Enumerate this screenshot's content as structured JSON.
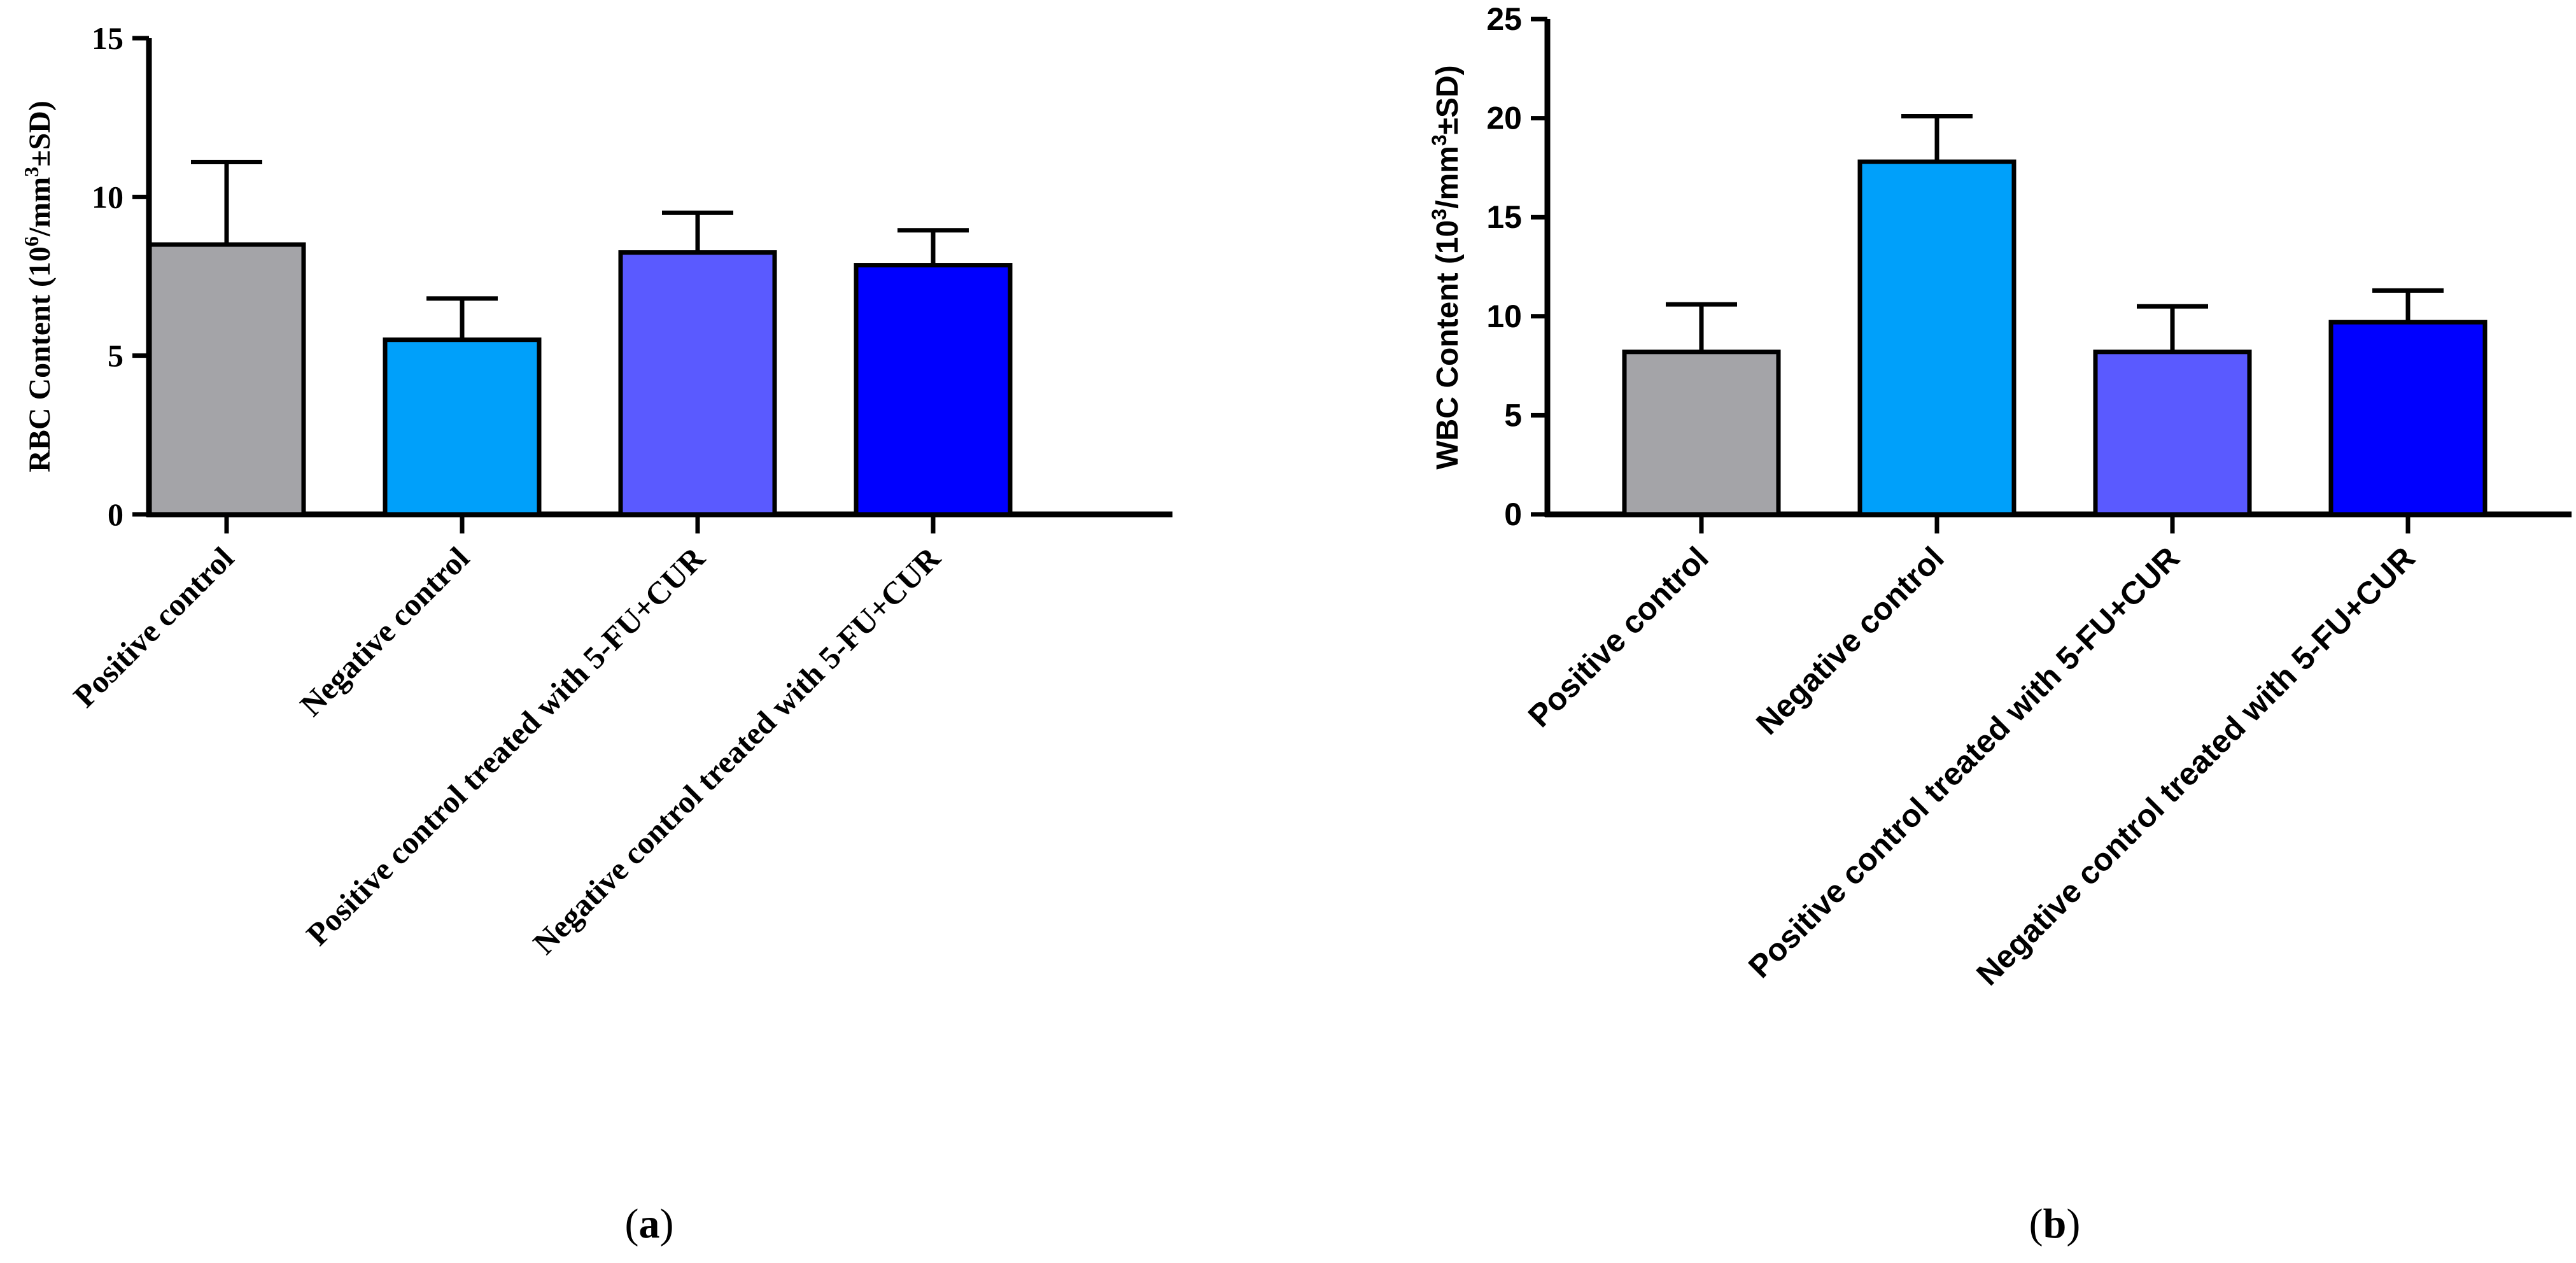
{
  "chart_data": [
    {
      "type": "bar",
      "panel_label": "a",
      "categories": [
        "Positive control",
        "Negative control",
        "Positive control treated with 5-FU+CUR",
        "Negative control treated with 5-FU+CUR"
      ],
      "values": [
        8.5,
        5.5,
        8.25,
        7.85
      ],
      "errors": [
        2.6,
        1.3,
        1.25,
        1.1
      ],
      "colors": [
        "#a4a4a8",
        "#00a0fa",
        "#5a5aff",
        "#0000ff"
      ],
      "title": "",
      "xlabel": "",
      "ylabel_parts": [
        "RBC Content (10",
        "6",
        "/mm",
        "3",
        "±SD)"
      ],
      "ylim": [
        0,
        15
      ],
      "yticks": [
        "0",
        "5",
        "10",
        "15"
      ]
    },
    {
      "type": "bar",
      "panel_label": "b",
      "categories": [
        "Positive control",
        "Negative control",
        "Positive control treated with 5-FU+CUR",
        "Negative control treated with 5-FU+CUR"
      ],
      "values": [
        8.2,
        17.8,
        8.2,
        9.7
      ],
      "errors": [
        2.4,
        2.3,
        2.3,
        1.6
      ],
      "colors": [
        "#a4a4a8",
        "#00a0fa",
        "#5a5aff",
        "#0000ff"
      ],
      "title": "",
      "xlabel": "",
      "ylabel_parts": [
        "WBC Content (10",
        "3",
        "/mm",
        "3",
        "±SD)"
      ],
      "ylim": [
        0,
        25
      ],
      "yticks": [
        "0",
        "5",
        "10",
        "15",
        "20",
        "25"
      ]
    }
  ]
}
